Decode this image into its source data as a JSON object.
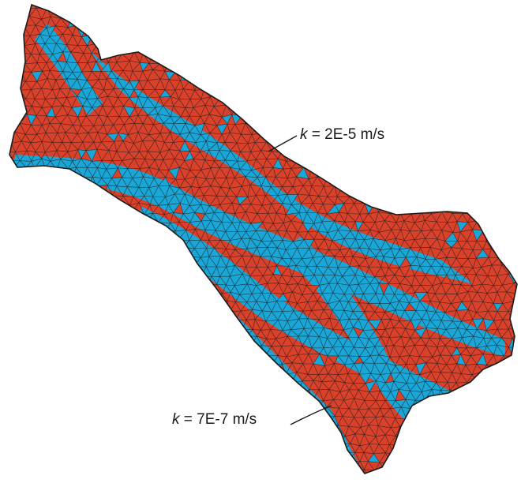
{
  "colors": {
    "high_k": "#d9412b",
    "low_k": "#1aa6d6",
    "mesh_lines": "#1b1b1b",
    "background": "#ffffff"
  },
  "annotations": {
    "upper": {
      "symbol": "k",
      "equals": " = 2E-5 m/s",
      "material": "high_k"
    },
    "lower": {
      "symbol": "k",
      "equals": " = 7E-7 m/s",
      "material": "low_k"
    }
  }
}
